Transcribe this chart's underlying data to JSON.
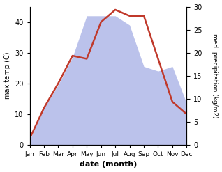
{
  "months": [
    "Jan",
    "Feb",
    "Mar",
    "Apr",
    "May",
    "Jun",
    "Jul",
    "Aug",
    "Sep",
    "Oct",
    "Nov",
    "Dec"
  ],
  "temp_max": [
    2,
    12,
    20,
    29,
    28,
    40,
    44,
    42,
    42,
    28,
    14,
    10
  ],
  "precip_display": [
    1.5,
    12,
    19.5,
    28.5,
    42,
    42,
    42,
    39,
    25.5,
    24,
    25.5,
    13.5
  ],
  "temp_color": "#c0392b",
  "precip_color_fill": "#b0b8e8",
  "title": "",
  "xlabel": "date (month)",
  "ylabel_left": "max temp (C)",
  "ylabel_right": "med. precipitation (kg/m2)",
  "ylim_left": [
    0,
    45
  ],
  "ylim_right": [
    0,
    30
  ],
  "yticks_left": [
    0,
    10,
    20,
    30,
    40
  ],
  "yticks_right": [
    0,
    5,
    10,
    15,
    20,
    25,
    30
  ],
  "background_color": "#ffffff",
  "figsize": [
    3.18,
    2.47
  ],
  "dpi": 100
}
